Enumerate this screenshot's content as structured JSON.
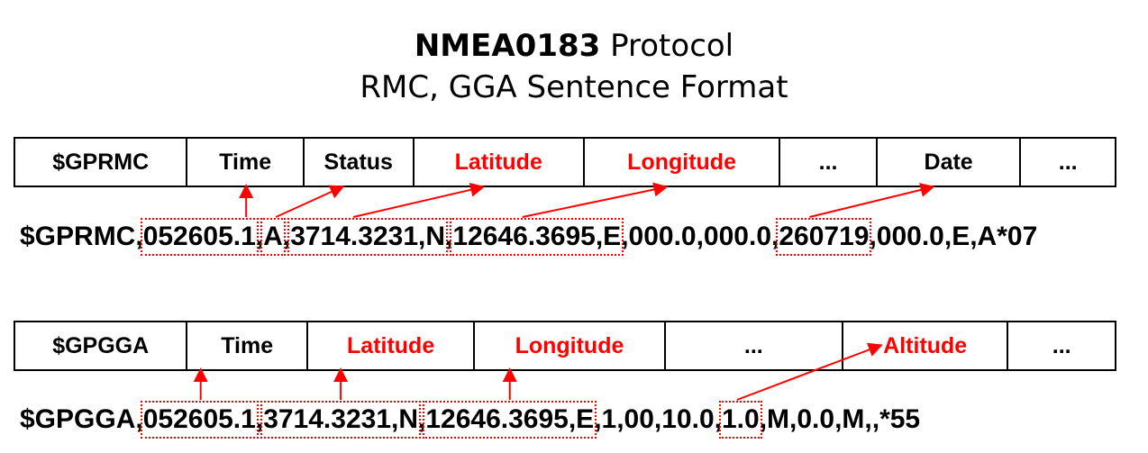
{
  "title": {
    "bold": "NMEA0183",
    "rest": " Protocol",
    "line2": "RMC, GGA Sentence Format"
  },
  "rmc": {
    "fields": [
      {
        "label": "$GPRMC",
        "red": false
      },
      {
        "label": "Time",
        "red": false
      },
      {
        "label": "Status",
        "red": false
      },
      {
        "label": "Latitude",
        "red": true
      },
      {
        "label": "Longitude",
        "red": true
      },
      {
        "label": "...",
        "red": false
      },
      {
        "label": "Date",
        "red": false
      },
      {
        "label": "...",
        "red": false
      }
    ],
    "sentence": [
      {
        "text": "$GPRMC,",
        "box": false
      },
      {
        "text": "052605.1",
        "box": true
      },
      {
        "text": ",",
        "box": false
      },
      {
        "text": "A",
        "box": true
      },
      {
        "text": ",",
        "box": false
      },
      {
        "text": "3714.3231,N",
        "box": true
      },
      {
        "text": ",",
        "box": false
      },
      {
        "text": "12646.3695,E",
        "box": true
      },
      {
        "text": ",000.0,000.0,",
        "box": false
      },
      {
        "text": "260719",
        "box": true
      },
      {
        "text": ",000.0,E,A*07",
        "box": false
      }
    ]
  },
  "gga": {
    "fields": [
      {
        "label": "$GPGGA",
        "red": false
      },
      {
        "label": "Time",
        "red": false
      },
      {
        "label": "Latitude",
        "red": true
      },
      {
        "label": "Longitude",
        "red": true
      },
      {
        "label": "...",
        "red": false
      },
      {
        "label": "Altitude",
        "red": true
      },
      {
        "label": "...",
        "red": false
      }
    ],
    "sentence": [
      {
        "text": "$GPGGA,",
        "box": false
      },
      {
        "text": "052605.1",
        "box": true
      },
      {
        "text": ",",
        "box": false
      },
      {
        "text": "3714.3231,N",
        "box": true
      },
      {
        "text": ",",
        "box": false
      },
      {
        "text": "12646.3695,E",
        "box": true
      },
      {
        "text": ",1,00,10.0,",
        "box": false
      },
      {
        "text": "1.0",
        "box": true
      },
      {
        "text": ",M,0.0,M,,*55",
        "box": false
      }
    ]
  },
  "colors": {
    "highlight": "#ff0000",
    "border": "#000000"
  }
}
